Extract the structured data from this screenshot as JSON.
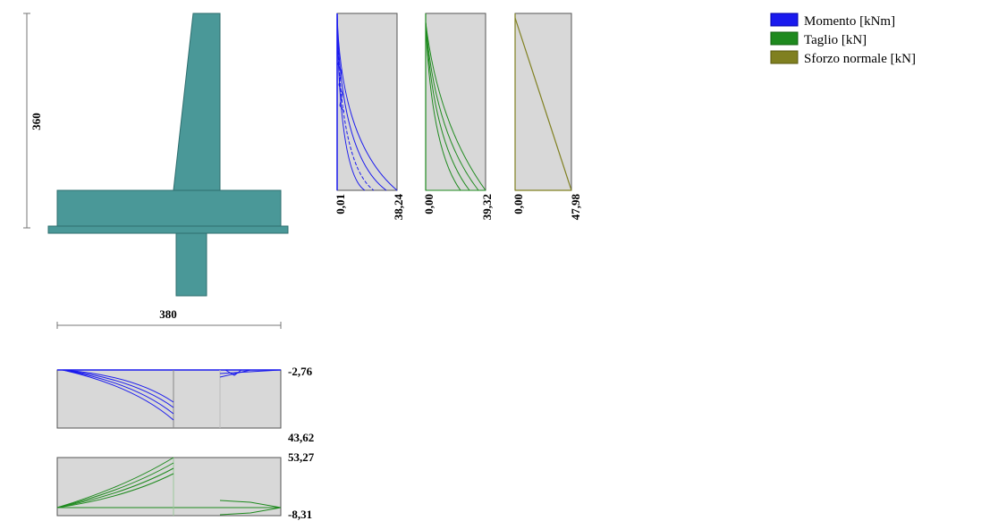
{
  "wall": {
    "height_label": "360",
    "width_label": "380"
  },
  "colors": {
    "structure": "#4a9898",
    "panel": "#d8d8d8",
    "moment": "#1a1aee",
    "shear": "#1e8a1e",
    "normal": "#808020"
  },
  "stem_diagrams": {
    "moment": {
      "min_label": "0,01",
      "max_label": "38,24"
    },
    "shear": {
      "min_label": "0,00",
      "max_label": "39,32"
    },
    "normal": {
      "min_label": "0,00",
      "max_label": "47,98"
    }
  },
  "base_diagrams": {
    "moment": {
      "top_label": "-2,76",
      "bottom_label": "43,62"
    },
    "shear": {
      "top_label": "53,27",
      "bottom_label": "-8,31"
    }
  },
  "legend": [
    {
      "label": "Momento [kNm]",
      "color": "#1a1aee"
    },
    {
      "label": "Taglio [kN]",
      "color": "#1e8a1e"
    },
    {
      "label": "Sforzo normale [kN]",
      "color": "#808020"
    }
  ]
}
